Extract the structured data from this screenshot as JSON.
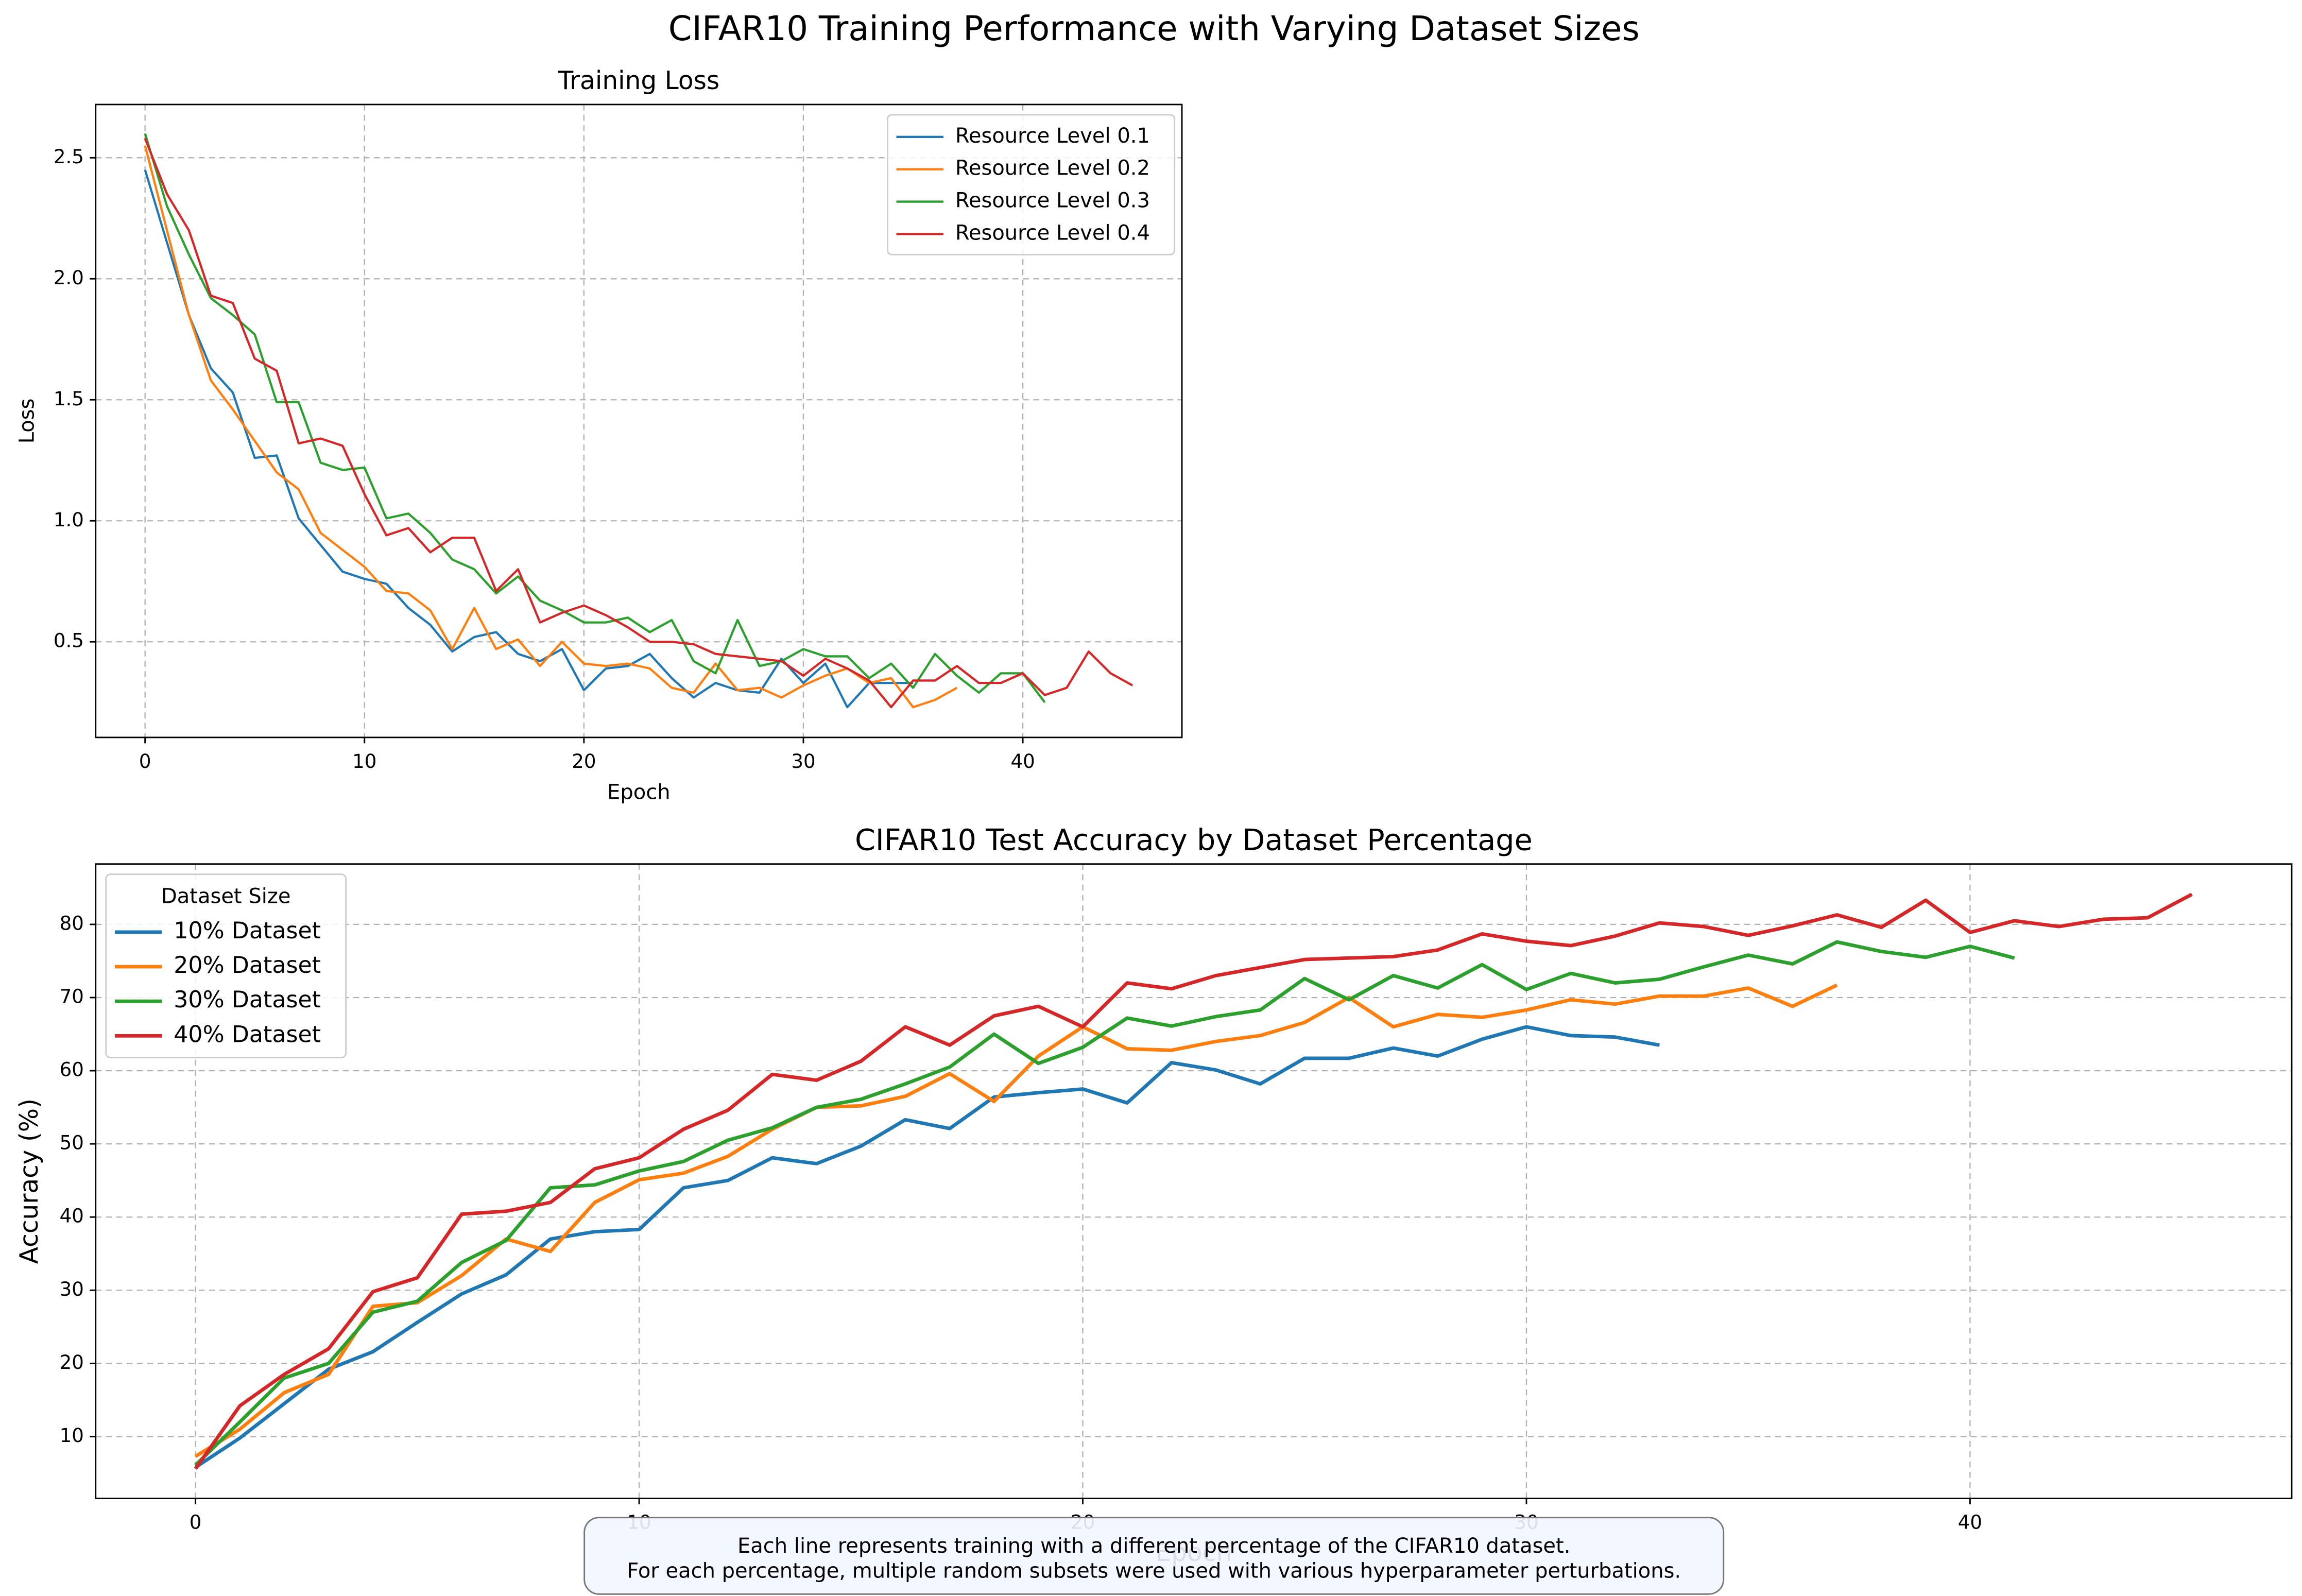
{
  "title": "CIFAR10 Training Performance with Varying Dataset Sizes",
  "annotation": [
    "Each line represents training with a different percentage of the CIFAR10 dataset.",
    "For each percentage, multiple random subsets were used with various hyperparameter perturbations."
  ],
  "chart_data": [
    {
      "type": "line",
      "title": "Training Loss",
      "x_label": "Epoch",
      "y_label": "Loss",
      "x": [
        0,
        1,
        2,
        3,
        4,
        5,
        6,
        7,
        8,
        9,
        10,
        11,
        12,
        13,
        14,
        15,
        16,
        17,
        18,
        19,
        20,
        21,
        22,
        23,
        24,
        25,
        26,
        27,
        28,
        29,
        30,
        31,
        32,
        33,
        34,
        35,
        36,
        37,
        38,
        39,
        40,
        41,
        42,
        43,
        44,
        45
      ],
      "xlim": [
        -2.25,
        47.25
      ],
      "ylim": [
        0.105,
        2.72
      ],
      "xticks": [
        0,
        10,
        20,
        30,
        40
      ],
      "yticks": [
        0.5,
        {
          "value": 1,
          "label": "1.0"
        },
        1.5,
        {
          "value": 2,
          "label": "2.0"
        },
        2.5
      ],
      "grid": true,
      "legend": "upper right",
      "series": [
        {
          "name": "Resource Level 0.1",
          "color": "#1f77b4",
          "values": [
            2.45,
            2.15,
            1.85,
            1.63,
            1.53,
            1.26,
            1.27,
            1.01,
            0.9,
            0.79,
            0.76,
            0.74,
            0.64,
            0.57,
            0.46,
            0.52,
            0.54,
            0.45,
            0.42,
            0.47,
            0.3,
            0.39,
            0.4,
            0.45,
            0.35,
            0.27,
            0.33,
            0.3,
            0.29,
            0.43,
            0.33,
            0.41,
            0.23,
            0.33,
            0.33,
            0.33,
            null,
            null,
            null,
            null,
            null,
            null,
            null,
            null,
            null,
            null
          ]
        },
        {
          "name": "Resource Level 0.2",
          "color": "#ff7f0e",
          "values": [
            2.55,
            2.2,
            1.85,
            1.58,
            1.46,
            1.33,
            1.2,
            1.13,
            0.95,
            0.88,
            0.81,
            0.71,
            0.7,
            0.63,
            0.47,
            0.64,
            0.47,
            0.51,
            0.4,
            0.5,
            0.41,
            0.4,
            0.41,
            0.39,
            0.31,
            0.29,
            0.41,
            0.3,
            0.31,
            0.27,
            0.32,
            0.36,
            0.39,
            0.33,
            0.35,
            0.23,
            0.26,
            0.31,
            null,
            null,
            null,
            null,
            null,
            null,
            null,
            null
          ]
        },
        {
          "name": "Resource Level 0.3",
          "color": "#2ca02c",
          "values": [
            2.6,
            2.3,
            2.1,
            1.92,
            1.85,
            1.77,
            1.49,
            1.49,
            1.24,
            1.21,
            1.22,
            1.01,
            1.03,
            0.95,
            0.84,
            0.8,
            0.7,
            0.77,
            0.67,
            0.63,
            0.58,
            0.58,
            0.6,
            0.54,
            0.59,
            0.42,
            0.37,
            0.59,
            0.4,
            0.42,
            0.47,
            0.44,
            0.44,
            0.35,
            0.41,
            0.31,
            0.45,
            0.36,
            0.29,
            0.37,
            0.37,
            0.25,
            null,
            null,
            null,
            null
          ]
        },
        {
          "name": "Resource Level 0.4",
          "color": "#d62728",
          "values": [
            2.58,
            2.35,
            2.2,
            1.93,
            1.9,
            1.67,
            1.62,
            1.32,
            1.34,
            1.31,
            1.11,
            0.94,
            0.97,
            0.87,
            0.93,
            0.93,
            0.71,
            0.8,
            0.58,
            0.62,
            0.65,
            0.61,
            0.56,
            0.5,
            0.5,
            0.49,
            0.45,
            0.44,
            0.43,
            0.42,
            0.36,
            0.43,
            0.39,
            0.34,
            0.23,
            0.34,
            0.34,
            0.4,
            0.33,
            0.33,
            0.37,
            0.28,
            0.31,
            0.46,
            0.37,
            0.32
          ]
        }
      ]
    },
    {
      "type": "line",
      "title": "CIFAR10 Test Accuracy by Dataset Percentage",
      "x_label": "Epoch",
      "y_label": "Accuracy (%)",
      "x": [
        0,
        1,
        2,
        3,
        4,
        5,
        6,
        7,
        8,
        9,
        10,
        11,
        12,
        13,
        14,
        15,
        16,
        17,
        18,
        19,
        20,
        21,
        22,
        23,
        24,
        25,
        26,
        27,
        28,
        29,
        30,
        31,
        32,
        33,
        34,
        35,
        36,
        37,
        38,
        39,
        40,
        41,
        42,
        43,
        44,
        45
      ],
      "xlim": [
        -2.25,
        47.25
      ],
      "ylim": [
        1.55,
        88.25
      ],
      "xticks": [
        0,
        10,
        20,
        30,
        40
      ],
      "yticks": [
        10,
        20,
        30,
        40,
        50,
        60,
        70,
        80
      ],
      "grid": true,
      "legend": "upper left",
      "legend_title": "Dataset Size",
      "series": [
        {
          "name": "10% Dataset",
          "color": "#1f77b4",
          "values": [
            5.8,
            9.8,
            14.5,
            19.2,
            21.6,
            25.6,
            29.5,
            32.1,
            37,
            38,
            38.3,
            44,
            45,
            48.1,
            47.3,
            49.7,
            53.3,
            52.1,
            56.4,
            57,
            57.5,
            55.6,
            61.1,
            60.1,
            58.2,
            61.7,
            61.7,
            63.1,
            62,
            64.3,
            66,
            64.8,
            64.6,
            63.5,
            null,
            null,
            null,
            null,
            null,
            null,
            null,
            null,
            null,
            null,
            null,
            null
          ]
        },
        {
          "name": "20% Dataset",
          "color": "#ff7f0e",
          "values": [
            7.3,
            11,
            16,
            18.5,
            27.8,
            28.3,
            32,
            37,
            35.3,
            42,
            45.1,
            46,
            48.3,
            52,
            55,
            55.2,
            56.5,
            59.6,
            55.8,
            62,
            66,
            63,
            62.8,
            64,
            64.8,
            66.6,
            70,
            66,
            67.7,
            67.3,
            68.3,
            69.7,
            69.1,
            70.2,
            70.2,
            71.3,
            68.8,
            71.7,
            null,
            null,
            null,
            null,
            null,
            null,
            null,
            null
          ]
        },
        {
          "name": "30% Dataset",
          "color": "#2ca02c",
          "values": [
            6.1,
            12,
            18,
            20,
            27,
            28.5,
            33.8,
            36.8,
            44,
            44.4,
            46.3,
            47.6,
            50.5,
            52.2,
            55,
            56.1,
            58.2,
            60.5,
            65,
            61,
            63.2,
            67.2,
            66.1,
            67.4,
            68.3,
            72.6,
            69.7,
            73,
            71.3,
            74.5,
            71.1,
            73.3,
            72,
            72.5,
            74.2,
            75.8,
            74.6,
            77.6,
            76.3,
            75.5,
            77,
            75.4,
            null,
            null,
            null,
            null
          ]
        },
        {
          "name": "40% Dataset",
          "color": "#d62728",
          "values": [
            5.6,
            14.2,
            18.5,
            22,
            29.8,
            31.7,
            40.4,
            40.8,
            42,
            46.6,
            48.1,
            52,
            54.6,
            59.5,
            58.7,
            61.3,
            66,
            63.5,
            67.5,
            68.8,
            66,
            72,
            71.2,
            73,
            74.1,
            75.2,
            75.4,
            75.6,
            76.5,
            78.7,
            77.7,
            77.1,
            78.4,
            80.2,
            79.7,
            78.5,
            79.8,
            81.3,
            79.6,
            83.3,
            78.9,
            80.5,
            79.7,
            80.7,
            80.9,
            84.1
          ]
        }
      ]
    }
  ]
}
